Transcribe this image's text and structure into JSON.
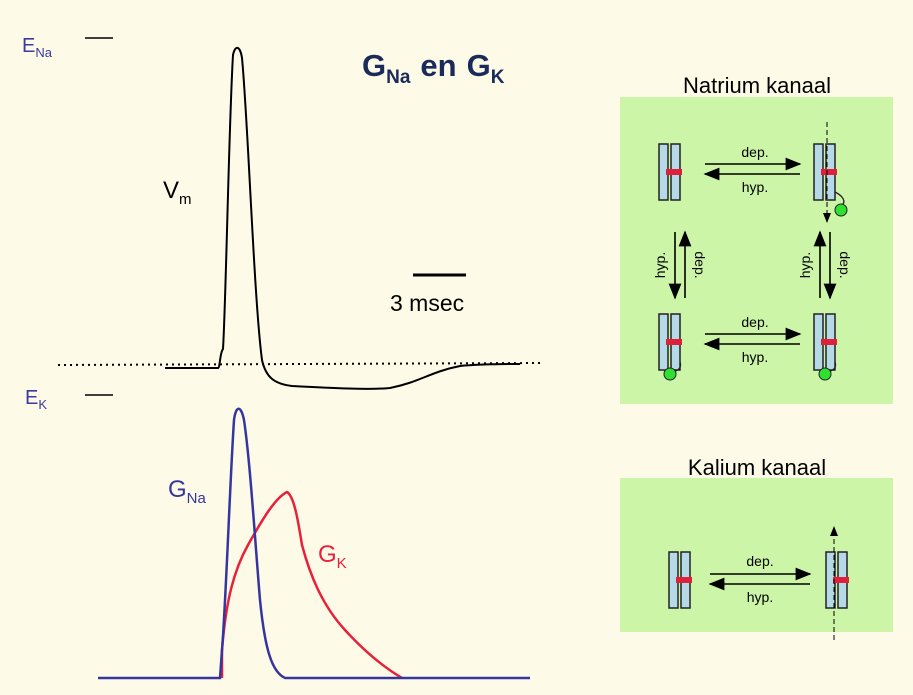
{
  "title": {
    "g1": "G",
    "sub1": "Na",
    "mid": "en",
    "g2": "G",
    "sub2": "K"
  },
  "labels": {
    "e_na": {
      "main": "E",
      "sub": "Na"
    },
    "e_k": {
      "main": "E",
      "sub": "K"
    },
    "vm": {
      "main": "V",
      "sub": "m"
    },
    "g_na": {
      "main": "G",
      "sub": "Na"
    },
    "g_k": {
      "main": "G",
      "sub": "K"
    },
    "scale": "3 msec"
  },
  "natrium": {
    "title": "Natrium kanaal",
    "arrows": [
      {
        "forward": "dep.",
        "backward": "hyp."
      },
      {
        "forward": "dep.",
        "backward": "hyp."
      },
      {
        "forward": "dep.",
        "backward": "hyp."
      },
      {
        "forward": "dep.",
        "backward": "hyp."
      }
    ]
  },
  "kalium": {
    "title": "Kalium kanaal",
    "arrows": [
      {
        "forward": "dep.",
        "backward": "hyp."
      }
    ]
  }
}
